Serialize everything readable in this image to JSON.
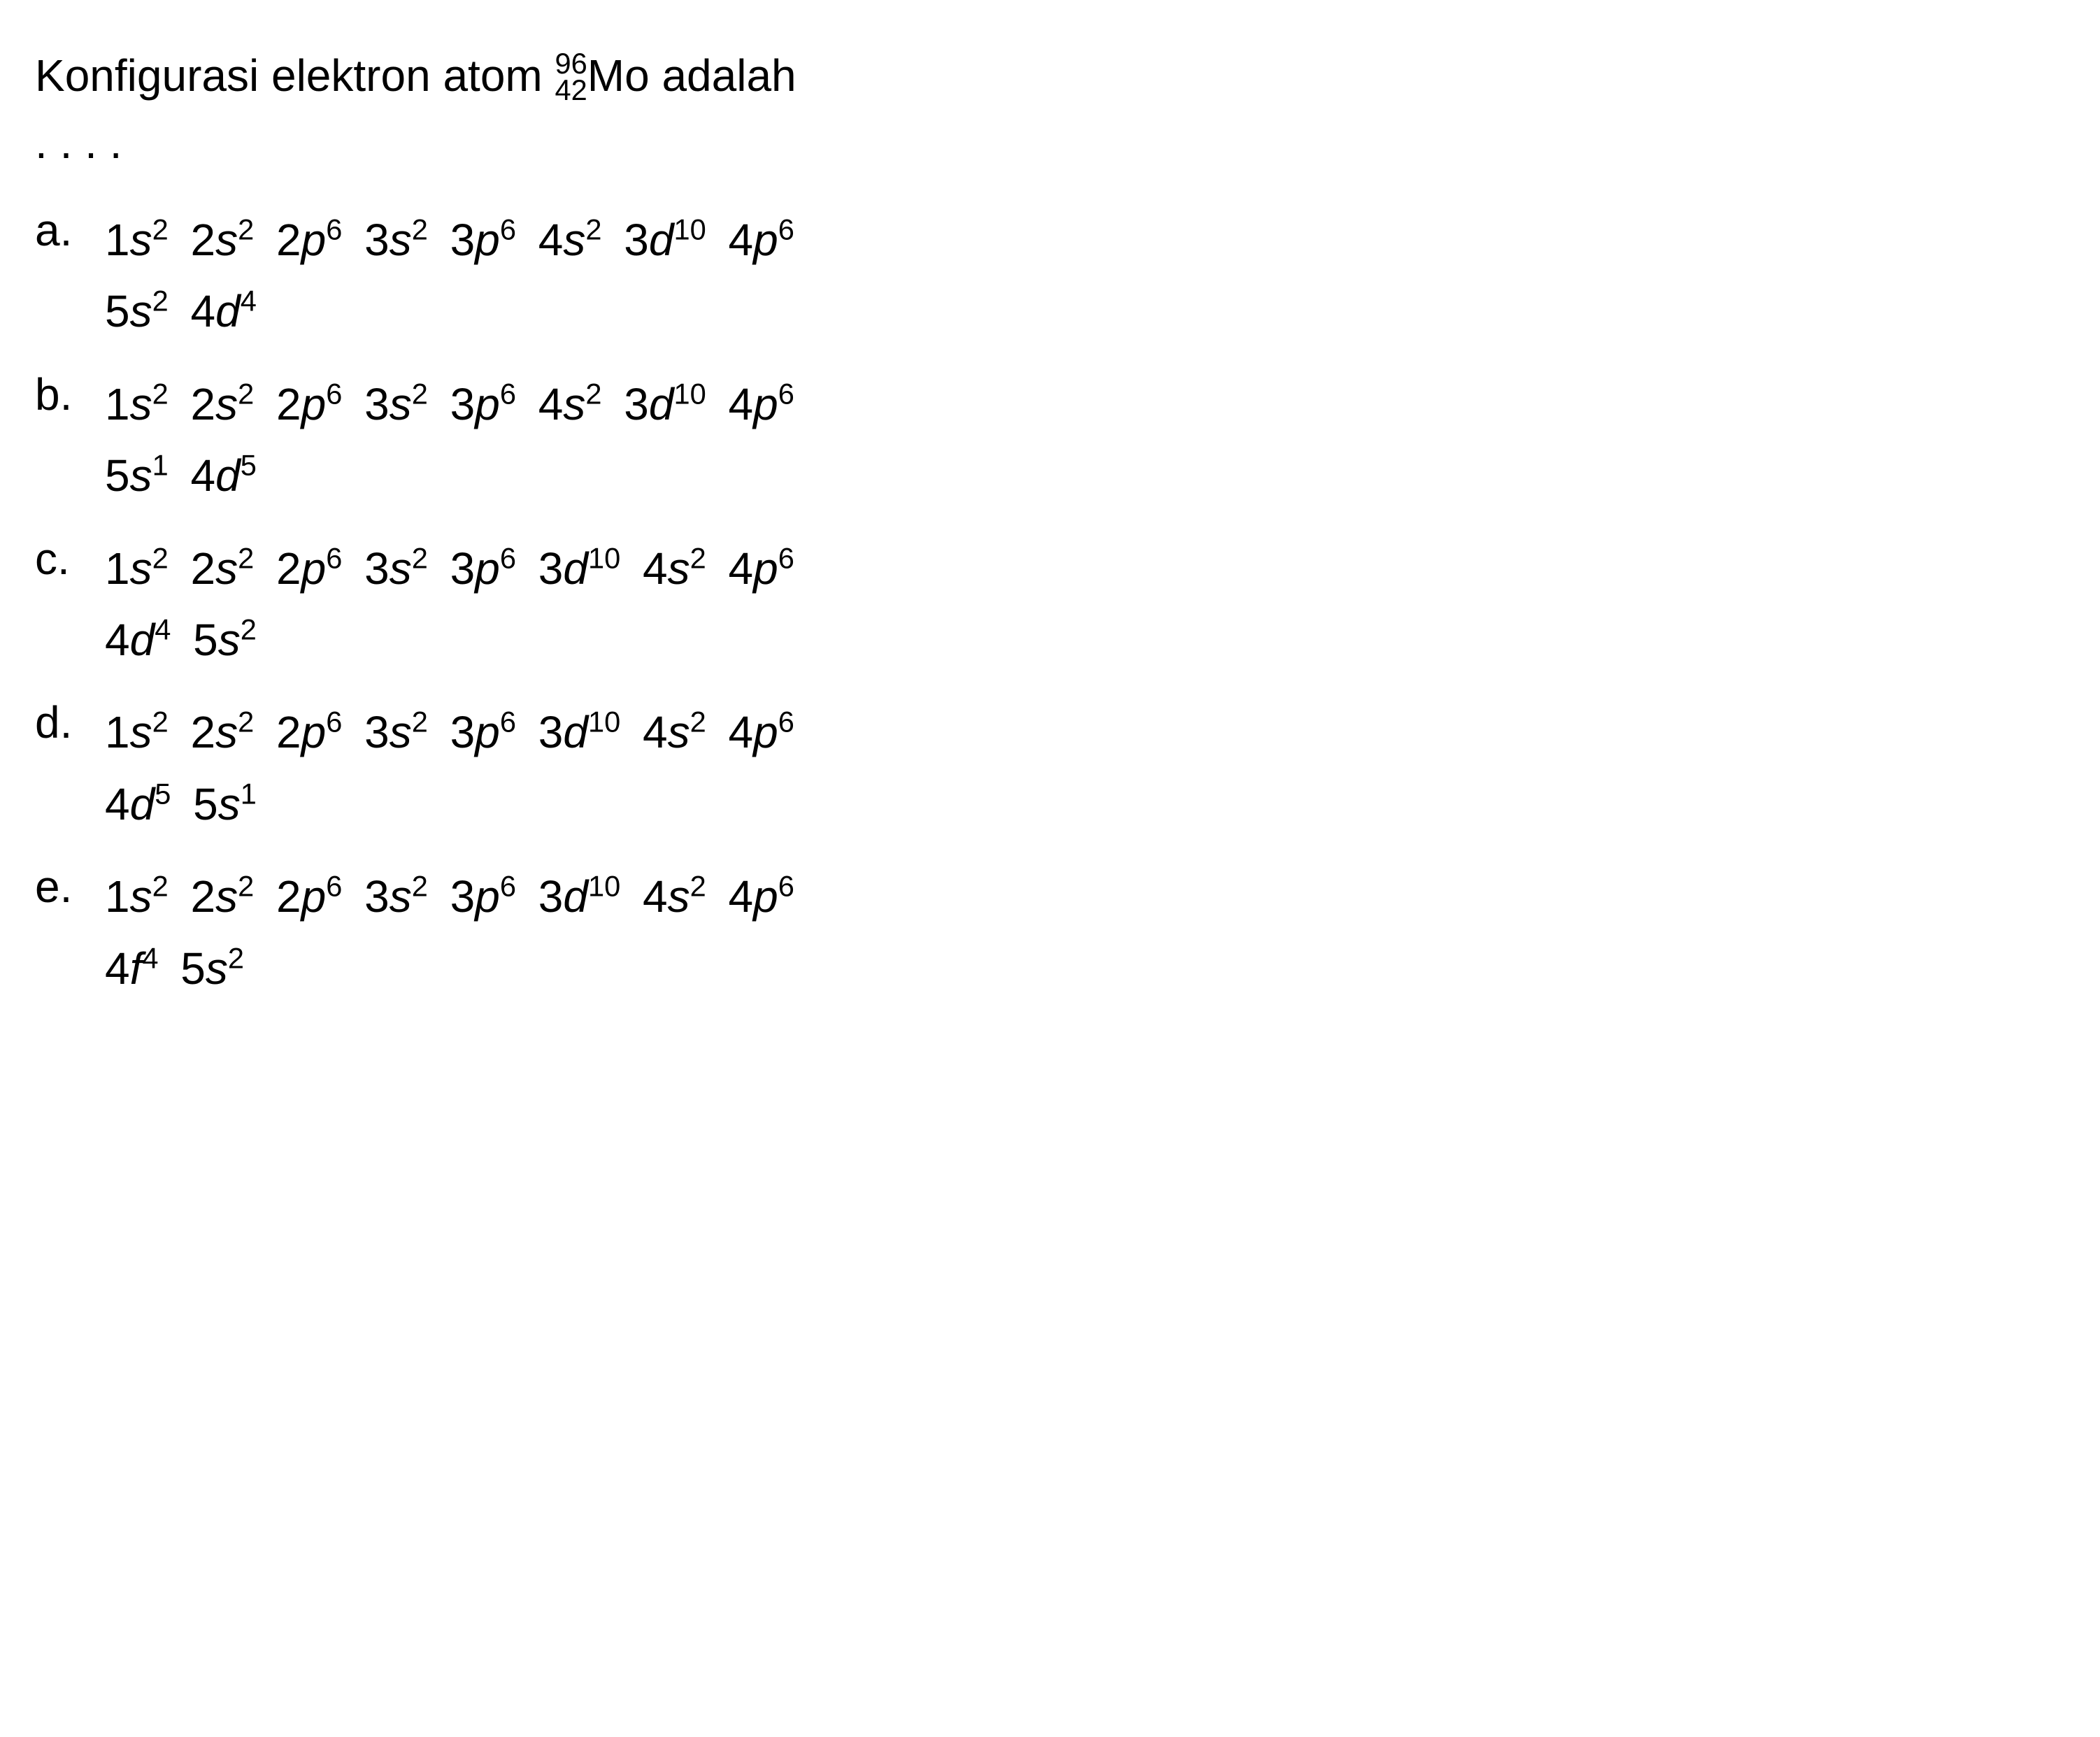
{
  "question": {
    "text_before": "Konfigurasi elektron atom ",
    "mass_number": "96",
    "atomic_number": "42",
    "element_symbol": "Mo",
    "text_after": " adalah",
    "ellipsis": ". . . ."
  },
  "options": [
    {
      "label": "a.",
      "orbitals": [
        {
          "n": "1",
          "l": "s",
          "e": "2"
        },
        {
          "n": "2",
          "l": "s",
          "e": "2"
        },
        {
          "n": "2",
          "l": "p",
          "e": "6"
        },
        {
          "n": "3",
          "l": "s",
          "e": "2"
        },
        {
          "n": "3",
          "l": "p",
          "e": "6"
        },
        {
          "n": "4",
          "l": "s",
          "e": "2"
        },
        {
          "n": "3",
          "l": "d",
          "e": "10"
        },
        {
          "n": "4",
          "l": "p",
          "e": "6"
        },
        {
          "n": "5",
          "l": "s",
          "e": "2"
        },
        {
          "n": "4",
          "l": "d",
          "e": "4"
        }
      ],
      "break_after": 8
    },
    {
      "label": "b.",
      "orbitals": [
        {
          "n": "1",
          "l": "s",
          "e": "2"
        },
        {
          "n": "2",
          "l": "s",
          "e": "2"
        },
        {
          "n": "2",
          "l": "p",
          "e": "6"
        },
        {
          "n": "3",
          "l": "s",
          "e": "2"
        },
        {
          "n": "3",
          "l": "p",
          "e": "6"
        },
        {
          "n": "4",
          "l": "s",
          "e": "2"
        },
        {
          "n": "3",
          "l": "d",
          "e": "10"
        },
        {
          "n": "4",
          "l": "p",
          "e": "6"
        },
        {
          "n": "5",
          "l": "s",
          "e": "1"
        },
        {
          "n": "4",
          "l": "d",
          "e": "5"
        }
      ],
      "break_after": 8
    },
    {
      "label": "c.",
      "orbitals": [
        {
          "n": "1",
          "l": "s",
          "e": "2"
        },
        {
          "n": "2",
          "l": "s",
          "e": "2"
        },
        {
          "n": "2",
          "l": "p",
          "e": "6"
        },
        {
          "n": "3",
          "l": "s",
          "e": "2"
        },
        {
          "n": "3",
          "l": "p",
          "e": "6"
        },
        {
          "n": "3",
          "l": "d",
          "e": "10"
        },
        {
          "n": "4",
          "l": "s",
          "e": "2"
        },
        {
          "n": "4",
          "l": "p",
          "e": "6"
        },
        {
          "n": "4",
          "l": "d",
          "e": "4"
        },
        {
          "n": "5",
          "l": "s",
          "e": "2"
        }
      ],
      "break_after": 8
    },
    {
      "label": "d.",
      "orbitals": [
        {
          "n": "1",
          "l": "s",
          "e": "2"
        },
        {
          "n": "2",
          "l": "s",
          "e": "2"
        },
        {
          "n": "2",
          "l": "p",
          "e": "6"
        },
        {
          "n": "3",
          "l": "s",
          "e": "2"
        },
        {
          "n": "3",
          "l": "p",
          "e": "6"
        },
        {
          "n": "3",
          "l": "d",
          "e": "10"
        },
        {
          "n": "4",
          "l": "s",
          "e": "2"
        },
        {
          "n": "4",
          "l": "p",
          "e": "6"
        },
        {
          "n": "4",
          "l": "d",
          "e": "5"
        },
        {
          "n": "5",
          "l": "s",
          "e": "1"
        }
      ],
      "break_after": 8
    },
    {
      "label": "e.",
      "orbitals": [
        {
          "n": "1",
          "l": "s",
          "e": "2"
        },
        {
          "n": "2",
          "l": "s",
          "e": "2"
        },
        {
          "n": "2",
          "l": "p",
          "e": "6"
        },
        {
          "n": "3",
          "l": "s",
          "e": "2"
        },
        {
          "n": "3",
          "l": "p",
          "e": "6"
        },
        {
          "n": "3",
          "l": "d",
          "e": "10"
        },
        {
          "n": "4",
          "l": "s",
          "e": "2"
        },
        {
          "n": "4",
          "l": "p",
          "e": "6"
        },
        {
          "n": "4",
          "l": "f",
          "e": "4"
        },
        {
          "n": "5",
          "l": "s",
          "e": "2"
        }
      ],
      "break_after": 8
    }
  ],
  "style": {
    "background_color": "#ffffff",
    "text_color": "#000000",
    "font_size_pt": 48,
    "font_family": "Arial"
  }
}
